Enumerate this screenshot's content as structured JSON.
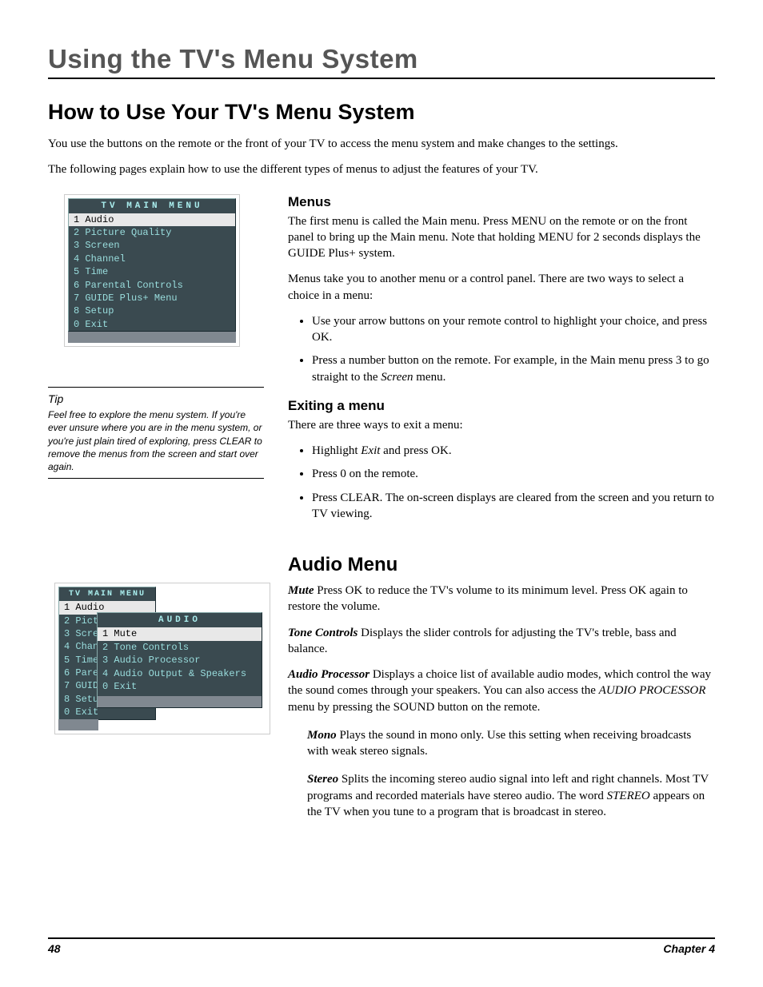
{
  "chapter_title": "Using the TV's Menu System",
  "h1": "How to Use Your TV's Menu System",
  "intro_p1": "You use the buttons on the remote or the front of your TV to access the menu system and make changes to the settings.",
  "intro_p2": "The following pages explain how to use the different types of menus to adjust the features of your TV.",
  "menus": {
    "heading": "Menus",
    "p1": "The first menu is called the Main menu. Press MENU on the remote or on the front panel to bring up the Main menu. Note that holding MENU for 2 seconds displays the GUIDE Plus+ system.",
    "p2": "Menus take you to another menu or a control panel. There are two ways to select a choice in a menu:",
    "bullets": [
      "Use your arrow buttons on your remote control to highlight your choice, and press OK.",
      "Press a number button on the remote. For example, in the Main menu press 3 to go straight to the Screen menu."
    ],
    "bullet2_prefix": "Press a number button on the remote. For example, in the Main menu press 3 to go straight to the ",
    "bullet2_italic": "Screen",
    "bullet2_suffix": " menu."
  },
  "exiting": {
    "heading": "Exiting a menu",
    "p1": "There are three ways to exit a menu:",
    "b1_prefix": "Highlight ",
    "b1_italic": "Exit",
    "b1_suffix": " and press OK.",
    "b2": "Press 0 on the remote.",
    "b3": "Press CLEAR. The on-screen displays are cleared from the screen and you return to TV viewing."
  },
  "audio": {
    "heading": "Audio Menu",
    "mute_label": "Mute",
    "mute_text": "   Press OK to reduce the TV's volume to its minimum level. Press OK again to restore the volume.",
    "tone_label": "Tone Controls",
    "tone_text": "   Displays the slider controls for adjusting the TV's treble, bass and balance.",
    "proc_label": "Audio Processor",
    "proc_text_a": "   Displays a choice list of available audio modes, which control the way the sound comes through your speakers. You can also access the ",
    "proc_italic": "AUDIO PROCESSOR",
    "proc_text_b": " menu by pressing the SOUND button on the remote.",
    "mono_label": "Mono",
    "mono_text": "   Plays the sound in mono only. Use this setting when receiving broadcasts with weak stereo signals.",
    "stereo_label": "Stereo",
    "stereo_text_a": "   Splits the incoming stereo audio signal into left and right channels. Most TV programs and recorded materials have stereo audio. The word ",
    "stereo_italic": "STEREO",
    "stereo_text_b": " appears on the TV when you tune to a program that is broadcast in stereo."
  },
  "tip": {
    "title": "Tip",
    "body": "Feel free to explore the menu system. If you're ever unsure where you are in the menu system, or you're just plain tired of exploring, press CLEAR to remove the menus from the screen and start over again."
  },
  "osd_main": {
    "title": "TV MAIN MENU",
    "items": [
      {
        "n": "1",
        "label": "Audio",
        "sel": true
      },
      {
        "n": "2",
        "label": "Picture Quality",
        "sel": false
      },
      {
        "n": "3",
        "label": "Screen",
        "sel": false
      },
      {
        "n": "4",
        "label": "Channel",
        "sel": false
      },
      {
        "n": "5",
        "label": "Time",
        "sel": false
      },
      {
        "n": "6",
        "label": "Parental Controls",
        "sel": false
      },
      {
        "n": "7",
        "label": "GUIDE Plus+ Menu",
        "sel": false
      },
      {
        "n": "8",
        "label": "Setup",
        "sel": false
      },
      {
        "n": "0",
        "label": "Exit",
        "sel": false
      }
    ]
  },
  "osd_main2": {
    "title": "TV MAIN MENU",
    "items": [
      {
        "n": "1",
        "label": "Audio",
        "sel": true
      },
      {
        "n": "2",
        "label": "Pict",
        "sel": false
      },
      {
        "n": "3",
        "label": "Scre",
        "sel": false
      },
      {
        "n": "4",
        "label": "Chan",
        "sel": false
      },
      {
        "n": "5",
        "label": "Time",
        "sel": false
      },
      {
        "n": "6",
        "label": "Pare",
        "sel": false
      },
      {
        "n": "7",
        "label": "GUID",
        "sel": false
      },
      {
        "n": "8",
        "label": "Setu",
        "sel": false
      },
      {
        "n": "0",
        "label": "Exit",
        "sel": false
      }
    ]
  },
  "osd_audio": {
    "title": "AUDIO",
    "items": [
      {
        "n": "1",
        "label": "Mute",
        "sel": true
      },
      {
        "n": "2",
        "label": "Tone Controls",
        "sel": false
      },
      {
        "n": "3",
        "label": "Audio Processor",
        "sel": false
      },
      {
        "n": "4",
        "label": "Audio Output & Speakers",
        "sel": false
      },
      {
        "n": "0",
        "label": "Exit",
        "sel": false
      }
    ]
  },
  "footer": {
    "page": "48",
    "chapter": "Chapter 4"
  },
  "colors": {
    "osd_bg": "#3a4a50",
    "osd_text": "#99dddd",
    "osd_sel_bg": "#e8e8e8",
    "osd_sel_text": "#000000",
    "chapter_title_color": "#555555"
  }
}
